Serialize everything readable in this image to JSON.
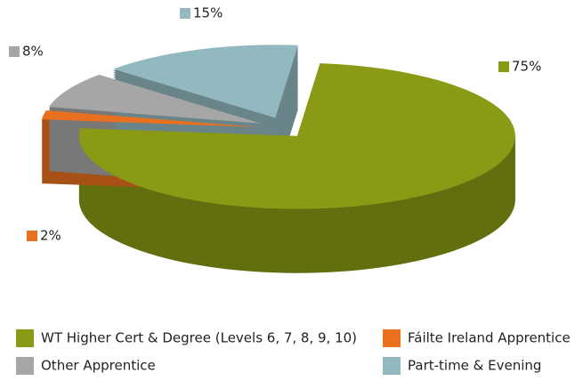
{
  "chart_data": {
    "type": "pie",
    "categories": [
      "WT Higher Cert & Degree (Levels 6, 7, 8, 9, 10)",
      "Fáilte Ireland Apprentice",
      "Other Apprentice",
      "Part-time & Evening"
    ],
    "values": [
      75,
      2,
      8,
      15
    ],
    "value_labels": [
      "75%",
      "2%",
      "8%",
      "15%"
    ],
    "colors": [
      "#8a9a14",
      "#e8701f",
      "#a6a6a6",
      "#93b9c0"
    ],
    "legend": "bottom"
  }
}
